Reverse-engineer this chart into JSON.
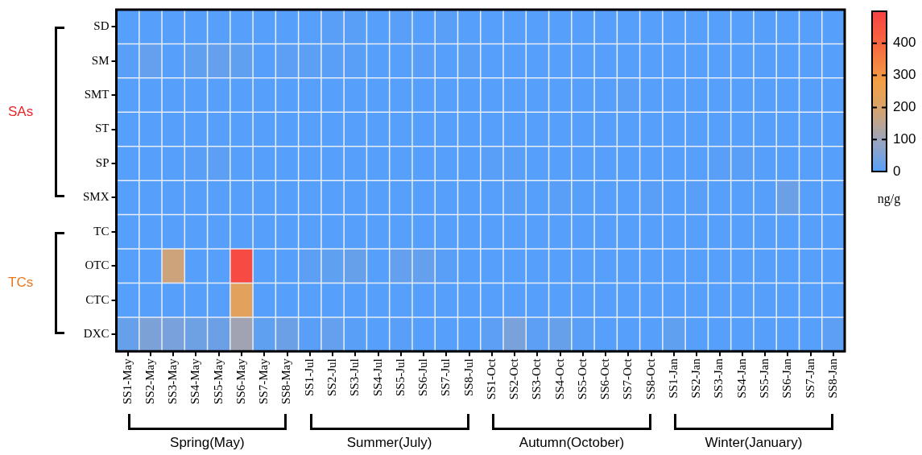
{
  "chart_data": {
    "type": "heatmap",
    "categories": [
      "SS1-May",
      "SS2-May",
      "SS3-May",
      "SS4-May",
      "SS5-May",
      "SS6-May",
      "SS7-May",
      "SS8-May",
      "SS1-Jul",
      "SS2-Jul",
      "SS3-Jul",
      "SS4-Jul",
      "SS5-Jul",
      "SS6-Jul",
      "SS7-Jul",
      "SS8-Jul",
      "SS1-Oct",
      "SS2-Oct",
      "SS3-Oct",
      "SS4-Oct",
      "SS5-Oct",
      "SS6-Oct",
      "SS7-Oct",
      "SS8-Oct",
      "SS1-Jan",
      "SS2-Jan",
      "SS3-Jan",
      "SS4-Jan",
      "SS5-Jan",
      "SS6-Jan",
      "SS7-Jan",
      "SS8-Jan"
    ],
    "y_categories": [
      "SD",
      "SM",
      "SMT",
      "ST",
      "SP",
      "SMX",
      "TC",
      "OTC",
      "CTC",
      "DXC"
    ],
    "cells": [
      [
        0,
        0,
        0,
        0,
        0,
        0,
        0,
        0,
        0,
        5,
        5,
        0,
        5,
        0,
        5,
        0,
        0,
        0,
        0,
        0,
        0,
        0,
        0,
        0,
        0,
        0,
        0,
        0,
        0,
        0,
        0,
        0
      ],
      [
        5,
        20,
        0,
        15,
        20,
        15,
        0,
        10,
        10,
        5,
        5,
        0,
        0,
        5,
        0,
        5,
        0,
        0,
        0,
        0,
        0,
        0,
        0,
        0,
        0,
        0,
        0,
        0,
        0,
        0,
        0,
        0
      ],
      [
        0,
        0,
        0,
        0,
        0,
        0,
        0,
        0,
        0,
        0,
        0,
        0,
        0,
        0,
        0,
        0,
        0,
        0,
        0,
        0,
        0,
        0,
        5,
        0,
        0,
        0,
        0,
        0,
        0,
        0,
        0,
        0
      ],
      [
        0,
        0,
        0,
        0,
        0,
        0,
        0,
        0,
        0,
        0,
        0,
        0,
        0,
        0,
        0,
        0,
        0,
        0,
        0,
        0,
        0,
        0,
        0,
        0,
        0,
        0,
        0,
        0,
        0,
        0,
        0,
        0
      ],
      [
        0,
        0,
        0,
        5,
        10,
        0,
        0,
        0,
        0,
        0,
        0,
        0,
        0,
        0,
        0,
        0,
        5,
        5,
        0,
        0,
        0,
        0,
        0,
        0,
        0,
        0,
        5,
        5,
        0,
        0,
        0,
        0
      ],
      [
        0,
        0,
        0,
        0,
        0,
        0,
        0,
        0,
        0,
        0,
        0,
        0,
        0,
        0,
        0,
        0,
        0,
        5,
        0,
        5,
        0,
        0,
        0,
        5,
        0,
        5,
        0,
        0,
        0,
        30,
        0,
        0
      ],
      [
        0,
        0,
        0,
        0,
        0,
        0,
        0,
        0,
        0,
        0,
        0,
        0,
        0,
        0,
        0,
        0,
        0,
        0,
        0,
        0,
        0,
        0,
        0,
        0,
        0,
        0,
        0,
        0,
        0,
        0,
        0,
        0
      ],
      [
        0,
        0,
        180,
        0,
        0,
        480,
        0,
        0,
        10,
        15,
        25,
        0,
        20,
        20,
        5,
        0,
        0,
        0,
        0,
        0,
        0,
        0,
        0,
        0,
        0,
        0,
        0,
        0,
        0,
        0,
        0,
        0
      ],
      [
        0,
        0,
        0,
        0,
        0,
        230,
        0,
        0,
        0,
        0,
        0,
        0,
        0,
        0,
        0,
        0,
        0,
        0,
        0,
        0,
        0,
        0,
        0,
        0,
        0,
        0,
        0,
        0,
        0,
        0,
        0,
        0
      ],
      [
        25,
        55,
        50,
        35,
        30,
        110,
        15,
        30,
        5,
        20,
        5,
        0,
        5,
        0,
        0,
        0,
        10,
        50,
        10,
        25,
        5,
        0,
        0,
        0,
        15,
        0,
        0,
        0,
        0,
        0,
        0,
        10
      ]
    ],
    "clim": [
      0,
      500
    ],
    "cticks": [
      0,
      100,
      200,
      300,
      400
    ],
    "clabel": "ng/g",
    "annotations": [
      "SAs",
      "TCs",
      "Spring(May)",
      "Summer(July)",
      "Autumn(October)",
      "Winter(January)"
    ]
  }
}
